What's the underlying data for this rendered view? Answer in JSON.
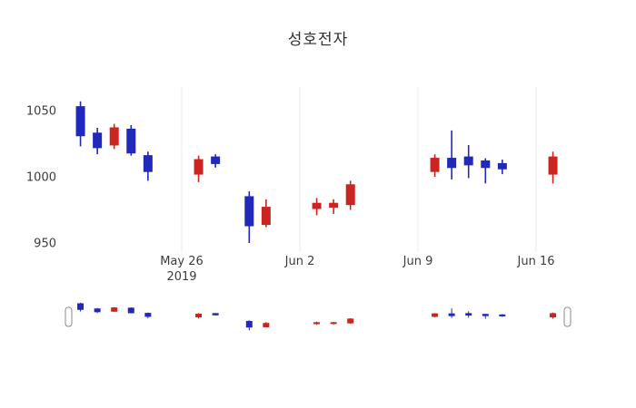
{
  "title": "성호전자",
  "colors": {
    "up": "#cb2421",
    "down": "#2128bc",
    "grid": "#ebebeb",
    "tick_text": "#3d3d3d",
    "handle_fill": "#ffffff",
    "handle_border": "#8a8a8a",
    "title_text": "#2f2f2f",
    "background": "#ffffff"
  },
  "chart_data": {
    "type": "candlestick",
    "title": "성호전자",
    "xlabel": "",
    "ylabel": "",
    "ylim": [
      940,
      1065
    ],
    "legend": "none",
    "grid": "vertical-weekly",
    "has_range_slider": true,
    "up_color_meaning": "close >= open (red, Korean convention)",
    "down_color_meaning": "close < open (blue, Korean convention)",
    "yticks": [
      {
        "value": 1050,
        "label": "1050"
      },
      {
        "value": 1000,
        "label": "1000"
      },
      {
        "value": 950,
        "label": "950"
      }
    ],
    "xticks": [
      {
        "date": "2019-05-26",
        "label": "May 26",
        "sublabel": "2019"
      },
      {
        "date": "2019-06-02",
        "label": "Jun 2"
      },
      {
        "date": "2019-06-09",
        "label": "Jun 9"
      },
      {
        "date": "2019-06-16",
        "label": "Jun 16"
      }
    ],
    "candles": [
      {
        "date": "2019-05-20",
        "open": 1053,
        "high": 1057,
        "low": 1023,
        "close": 1031
      },
      {
        "date": "2019-05-21",
        "open": 1033,
        "high": 1037,
        "low": 1017,
        "close": 1022
      },
      {
        "date": "2019-05-22",
        "open": 1024,
        "high": 1040,
        "low": 1021,
        "close": 1037
      },
      {
        "date": "2019-05-23",
        "open": 1036,
        "high": 1039,
        "low": 1016,
        "close": 1018
      },
      {
        "date": "2019-05-24",
        "open": 1016,
        "high": 1019,
        "low": 997,
        "close": 1004
      },
      {
        "date": "2019-05-27",
        "open": 1002,
        "high": 1016,
        "low": 996,
        "close": 1013
      },
      {
        "date": "2019-05-28",
        "open": 1015,
        "high": 1017,
        "low": 1007,
        "close": 1010
      },
      {
        "date": "2019-05-30",
        "open": 985,
        "high": 989,
        "low": 950,
        "close": 963
      },
      {
        "date": "2019-05-31",
        "open": 964,
        "high": 983,
        "low": 962,
        "close": 977
      },
      {
        "date": "2019-06-03",
        "open": 976,
        "high": 984,
        "low": 971,
        "close": 980
      },
      {
        "date": "2019-06-04",
        "open": 977,
        "high": 983,
        "low": 972,
        "close": 980
      },
      {
        "date": "2019-06-05",
        "open": 979,
        "high": 997,
        "low": 975,
        "close": 994
      },
      {
        "date": "2019-06-10",
        "open": 1004,
        "high": 1017,
        "low": 1000,
        "close": 1014
      },
      {
        "date": "2019-06-11",
        "open": 1014,
        "high": 1035,
        "low": 998,
        "close": 1007
      },
      {
        "date": "2019-06-12",
        "open": 1015,
        "high": 1024,
        "low": 999,
        "close": 1009
      },
      {
        "date": "2019-06-13",
        "open": 1012,
        "high": 1014,
        "low": 995,
        "close": 1007
      },
      {
        "date": "2019-06-14",
        "open": 1010,
        "high": 1013,
        "low": 1002,
        "close": 1006
      },
      {
        "date": "2019-06-17",
        "open": 1002,
        "high": 1019,
        "low": 995,
        "close": 1015
      }
    ]
  }
}
